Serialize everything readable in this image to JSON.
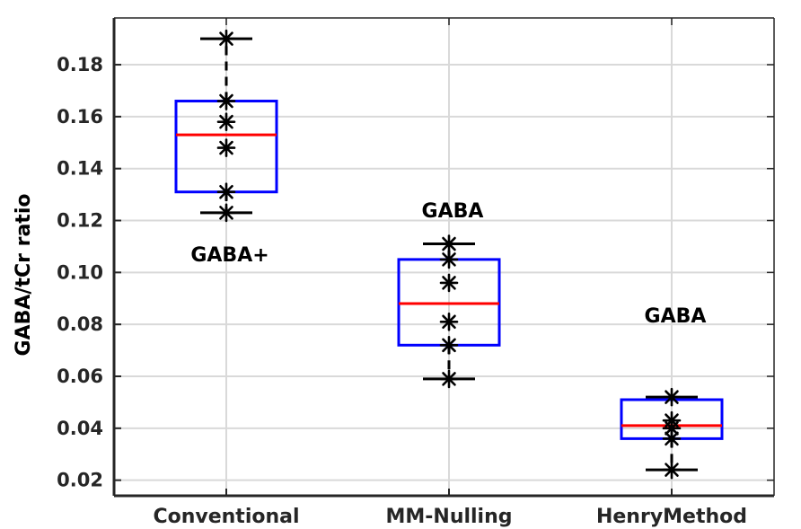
{
  "chart_data": {
    "type": "box",
    "ylabel": "GABA/tCr ratio",
    "xlabel": "",
    "title": "",
    "ylim": [
      0.014,
      0.198
    ],
    "yticks": [
      0.02,
      0.04,
      0.06,
      0.08,
      0.1,
      0.12,
      0.14,
      0.16,
      0.18
    ],
    "ytick_labels": [
      "0.02",
      "0.04",
      "0.06",
      "0.08",
      "0.10",
      "0.12",
      "0.14",
      "0.16",
      "0.18"
    ],
    "categories": [
      "Conventional",
      "MM-Nulling",
      "HenryMethod"
    ],
    "grid": true,
    "colors": {
      "box": "#0000ff",
      "median": "#ff0000",
      "whisker": "#000000",
      "points": "#000000",
      "grid": "#d9d9d9"
    },
    "boxes": [
      {
        "category": "Conventional",
        "q1": 0.131,
        "median": 0.153,
        "q3": 0.166,
        "whisker_low": 0.123,
        "whisker_high": 0.19,
        "points": [
          0.19,
          0.166,
          0.158,
          0.148,
          0.131,
          0.123
        ]
      },
      {
        "category": "MM-Nulling",
        "q1": 0.072,
        "median": 0.088,
        "q3": 0.105,
        "whisker_low": 0.059,
        "whisker_high": 0.111,
        "points": [
          0.111,
          0.105,
          0.096,
          0.081,
          0.072,
          0.059
        ]
      },
      {
        "category": "HenryMethod",
        "q1": 0.036,
        "median": 0.041,
        "q3": 0.051,
        "whisker_low": 0.024,
        "whisker_high": 0.052,
        "points": [
          0.052,
          0.043,
          0.04,
          0.036,
          0.024
        ]
      }
    ],
    "annotations": [
      {
        "text": "GABA+",
        "category": "Conventional",
        "y": 0.107
      },
      {
        "text": "GABA",
        "category": "MM-Nulling",
        "y": 0.124
      },
      {
        "text": "GABA",
        "category": "HenryMethod",
        "y": 0.0835
      }
    ]
  }
}
